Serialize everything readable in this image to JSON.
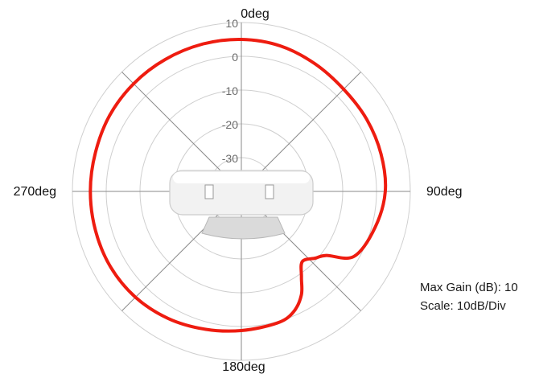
{
  "chart_data": {
    "type": "polar",
    "angle_labels": [
      "0deg",
      "90deg",
      "180deg",
      "270deg"
    ],
    "radial_ticks": [
      10,
      0,
      -10,
      -20,
      -30
    ],
    "radial_range": [
      -40,
      10
    ],
    "grid": true,
    "series": [
      {
        "color": "#ee1c10",
        "points": [
          {
            "angle": 0,
            "gain": 5
          },
          {
            "angle": 15,
            "gain": 4.6
          },
          {
            "angle": 30,
            "gain": 3.6
          },
          {
            "angle": 45,
            "gain": 2.8
          },
          {
            "angle": 60,
            "gain": 2.8
          },
          {
            "angle": 75,
            "gain": 2.8
          },
          {
            "angle": 90,
            "gain": 2.6
          },
          {
            "angle": 105,
            "gain": 1.0
          },
          {
            "angle": 120,
            "gain": -1.5
          },
          {
            "angle": 127,
            "gain": -8.5
          },
          {
            "angle": 132,
            "gain": -10.5
          },
          {
            "angle": 139,
            "gain": -12.5
          },
          {
            "angle": 145,
            "gain": -9
          },
          {
            "angle": 150,
            "gain": -4.5
          },
          {
            "angle": 157,
            "gain": -1
          },
          {
            "angle": 165,
            "gain": 0.4
          },
          {
            "angle": 180,
            "gain": 1.2
          },
          {
            "angle": 195,
            "gain": 2.2
          },
          {
            "angle": 210,
            "gain": 3.4
          },
          {
            "angle": 225,
            "gain": 4.3
          },
          {
            "angle": 240,
            "gain": 4.7
          },
          {
            "angle": 255,
            "gain": 4.7
          },
          {
            "angle": 270,
            "gain": 4.7
          },
          {
            "angle": 285,
            "gain": 4.7
          },
          {
            "angle": 300,
            "gain": 5.0
          },
          {
            "angle": 315,
            "gain": 5.1
          },
          {
            "angle": 330,
            "gain": 5.1
          },
          {
            "angle": 345,
            "gain": 5.1
          }
        ]
      }
    ]
  },
  "info": {
    "max_gain": "Max Gain (dB): 10",
    "scale": "Scale: 10dB/Div"
  },
  "colors": {
    "grid": "#cfcfcf",
    "axis": "#8a8a8a",
    "trace": "#ee1c10"
  }
}
